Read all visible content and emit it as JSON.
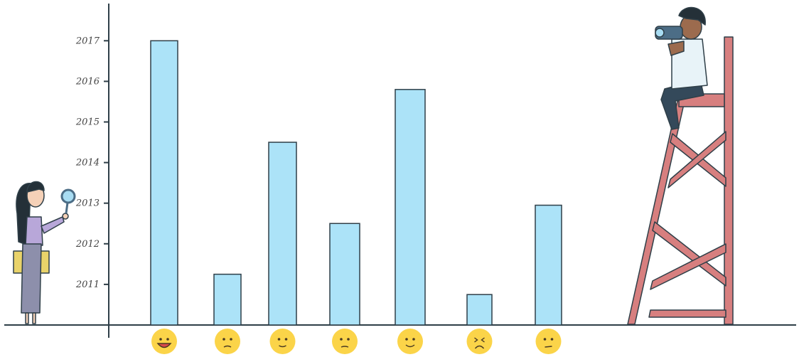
{
  "chart_data": {
    "type": "bar",
    "categories": [
      "delighted",
      "confused",
      "content",
      "puzzled",
      "pleased",
      "frustrated",
      "unsure"
    ],
    "values": [
      2017.0,
      2011.25,
      2014.5,
      2012.5,
      2015.8,
      2010.75,
      2012.95
    ],
    "y_ticks": [
      "2011",
      "2012",
      "2013",
      "2014",
      "2015",
      "2016",
      "2017"
    ],
    "ylim": [
      2010,
      2017.9
    ],
    "title": "",
    "xlabel": "",
    "ylabel": "",
    "grid": false,
    "legend": "none",
    "colors": {
      "bar_fill": "#ace3f8",
      "stroke": "#2f3f48",
      "tower": "#d77f7f",
      "emoji": "#fbd449"
    }
  }
}
